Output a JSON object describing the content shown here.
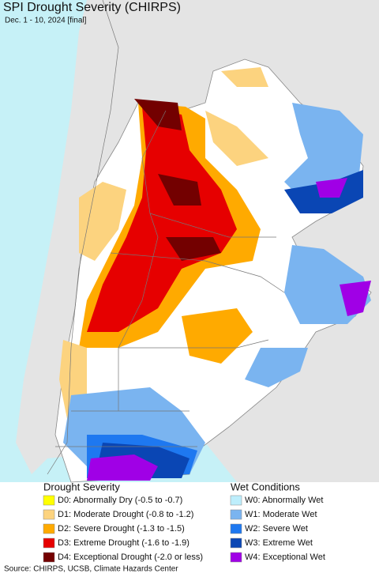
{
  "header": {
    "title": "SPI Drought Severity (CHIRPS)",
    "subtitle": "Dec. 1 - 10, 2024 [final]"
  },
  "legend": {
    "groups": [
      {
        "title": "Drought Severity",
        "items": [
          {
            "label": "D0: Abnormally Dry (-0.5 to -0.7)",
            "color": "#ffff00"
          },
          {
            "label": "D1: Moderate Drought (-0.8 to -1.2)",
            "color": "#fcd37f"
          },
          {
            "label": "D2: Severe Drought (-1.3 to -1.5)",
            "color": "#ffaa00"
          },
          {
            "label": "D3: Extreme Drought (-1.6 to -1.9)",
            "color": "#e60000"
          },
          {
            "label": "D4: Exceptional Drought (-2.0 or less)",
            "color": "#730000"
          }
        ]
      },
      {
        "title": "Wet Conditions",
        "items": [
          {
            "label": "W0: Abnormally Wet",
            "color": "#bdeefc"
          },
          {
            "label": "W1: Moderate Wet",
            "color": "#7ab4f0"
          },
          {
            "label": "W2: Severe Wet",
            "color": "#1e78f0"
          },
          {
            "label": "W3: Extreme Wet",
            "color": "#0a46b4"
          },
          {
            "label": "W4: Exceptional Wet",
            "color": "#a000e6"
          }
        ]
      }
    ]
  },
  "footer": {
    "source": "Source: CHIRPS, UCSB, Climate Hazards Center"
  }
}
